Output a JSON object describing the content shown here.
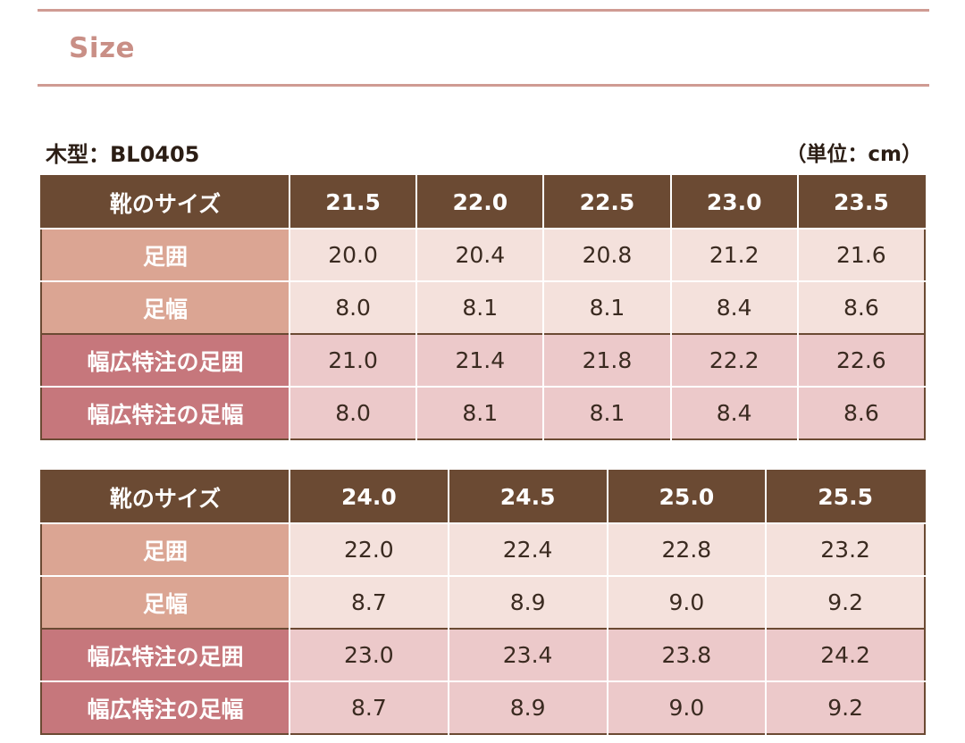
{
  "section_title": "Size",
  "model_label": "木型：BL0405",
  "unit_label": "（単位：cm）",
  "row_labels": {
    "size": "靴のサイズ",
    "girth": "足囲",
    "width": "足幅",
    "wide_girth": "幅広特注の足囲",
    "wide_width": "幅広特注の足幅"
  },
  "tables": [
    {
      "sizes": [
        "21.5",
        "22.0",
        "22.5",
        "23.0",
        "23.5"
      ],
      "girth": [
        "20.0",
        "20.4",
        "20.8",
        "21.2",
        "21.6"
      ],
      "width": [
        "8.0",
        "8.1",
        "8.1",
        "8.4",
        "8.6"
      ],
      "wide_girth": [
        "21.0",
        "21.4",
        "21.8",
        "22.2",
        "22.6"
      ],
      "wide_width": [
        "8.0",
        "8.1",
        "8.1",
        "8.4",
        "8.6"
      ]
    },
    {
      "sizes": [
        "24.0",
        "24.5",
        "25.0",
        "25.5"
      ],
      "girth": [
        "22.0",
        "22.4",
        "22.8",
        "23.2"
      ],
      "width": [
        "8.7",
        "8.9",
        "9.0",
        "9.2"
      ],
      "wide_girth": [
        "23.0",
        "23.4",
        "23.8",
        "24.2"
      ],
      "wide_width": [
        "8.7",
        "8.9",
        "9.0",
        "9.2"
      ]
    }
  ],
  "colors": {
    "header_bg": "#6b4a33",
    "accent_rule": "#cf9b93",
    "title_color": "#c98f86",
    "standard_label_bg": "#dba593",
    "standard_cell_bg": "#f4e1dc",
    "wide_label_bg": "#c6777c",
    "wide_cell_bg": "#ecc9ca"
  }
}
